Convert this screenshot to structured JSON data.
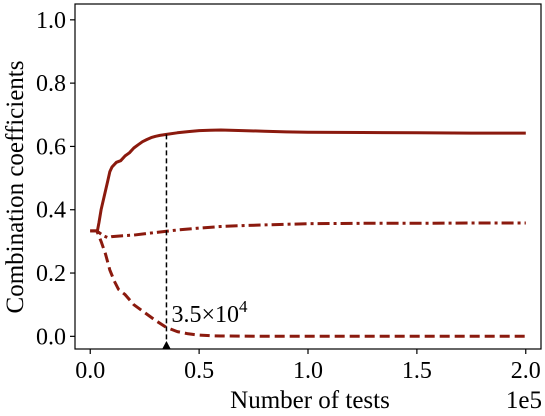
{
  "chart_data": {
    "type": "line",
    "title": "",
    "xlabel": "Number of tests",
    "ylabel": "Combination coefficients",
    "x_offset_label": "1e5",
    "xlim": [
      -7000,
      207000
    ],
    "ylim": [
      -0.04,
      1.05
    ],
    "x_ticks": [
      0,
      50000,
      100000,
      150000,
      200000
    ],
    "x_tick_labels": [
      "0.0",
      "0.5",
      "1.0",
      "1.5",
      "2.0"
    ],
    "y_ticks": [
      0.0,
      0.2,
      0.4,
      0.6,
      0.8,
      1.0
    ],
    "y_tick_labels": [
      "0.0",
      "0.2",
      "0.4",
      "0.6",
      "0.8",
      "1.0"
    ],
    "grid": false,
    "legend": "none",
    "color": "#8b1a0e",
    "series": [
      {
        "style": "solid",
        "x": [
          3300,
          4000,
          5000,
          6000,
          7000,
          8000,
          9000,
          10000,
          12000,
          14000,
          16000,
          18000,
          20000,
          22000,
          24000,
          26000,
          28000,
          30000,
          32000,
          35000,
          40000,
          45000,
          50000,
          55000,
          60000,
          70000,
          80000,
          90000,
          100000,
          125000,
          150000,
          175000,
          200000
        ],
        "y": [
          0.333,
          0.36,
          0.4,
          0.43,
          0.46,
          0.49,
          0.52,
          0.535,
          0.55,
          0.555,
          0.57,
          0.58,
          0.595,
          0.605,
          0.615,
          0.622,
          0.628,
          0.632,
          0.635,
          0.638,
          0.643,
          0.647,
          0.65,
          0.651,
          0.652,
          0.65,
          0.648,
          0.646,
          0.645,
          0.644,
          0.643,
          0.642,
          0.642
        ]
      },
      {
        "style": "dashdot",
        "x": [
          0,
          3000,
          6000,
          8000,
          10000,
          15000,
          20000,
          25000,
          30000,
          35000,
          40000,
          50000,
          60000,
          70000,
          80000,
          90000,
          100000,
          125000,
          150000,
          175000,
          200000
        ],
        "y": [
          0.333,
          0.333,
          0.318,
          0.312,
          0.315,
          0.318,
          0.32,
          0.324,
          0.328,
          0.332,
          0.336,
          0.342,
          0.347,
          0.35,
          0.352,
          0.354,
          0.356,
          0.357,
          0.357,
          0.358,
          0.358
        ]
      },
      {
        "style": "dashed",
        "x": [
          0,
          3000,
          5000,
          7000,
          9000,
          11000,
          13000,
          16000,
          20000,
          25000,
          30000,
          35000,
          40000,
          45000,
          50000,
          55000,
          60000,
          80000,
          100000,
          150000,
          200000
        ],
        "y": [
          0.333,
          0.333,
          0.3,
          0.26,
          0.21,
          0.175,
          0.148,
          0.132,
          0.1,
          0.075,
          0.05,
          0.028,
          0.015,
          0.008,
          0.004,
          0.002,
          0.001,
          0.0,
          0.0,
          0.0,
          0.0
        ]
      }
    ],
    "annotation": {
      "x": 35000,
      "y_top": 0.638,
      "text_mantissa": "3.5",
      "text_times": "×",
      "text_base": "10",
      "text_exp": "4"
    }
  }
}
